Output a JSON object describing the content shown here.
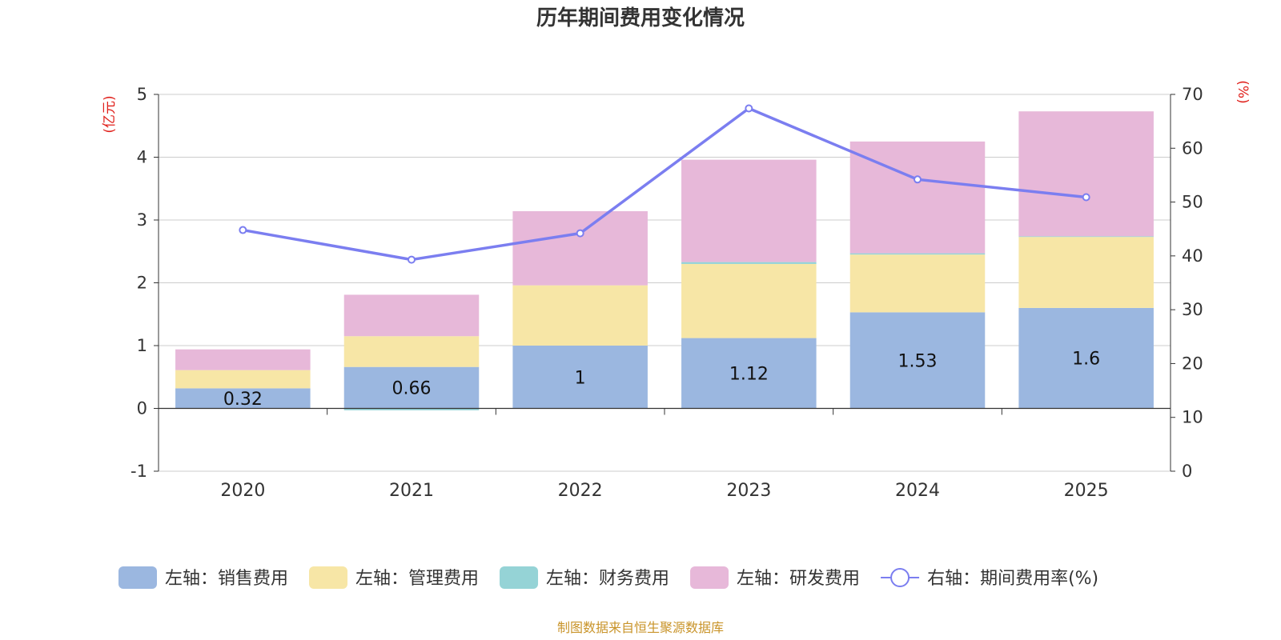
{
  "chart_data": {
    "type": "bar",
    "stacked": true,
    "title": "历年期间费用变化情况",
    "categories": [
      "2020",
      "2021",
      "2022",
      "2023",
      "2024",
      "2025"
    ],
    "left_axis": {
      "unit": "(亿元)",
      "ylim": [
        -1,
        5
      ],
      "ticks": [
        "-1",
        "0",
        "1",
        "2",
        "3",
        "4",
        "5"
      ]
    },
    "right_axis": {
      "unit": "(%)",
      "ylim": [
        0,
        70
      ],
      "ticks": [
        "0",
        "10",
        "20",
        "30",
        "40",
        "50",
        "60",
        "70"
      ]
    },
    "series": [
      {
        "name": "左轴：销售费用",
        "axis": "left",
        "color": "#9bb7e0",
        "values": [
          0.32,
          0.66,
          1.0,
          1.12,
          1.53,
          1.6
        ],
        "labels": [
          "0.32",
          "0.66",
          "1",
          "1.12",
          "1.53",
          "1.6"
        ]
      },
      {
        "name": "左轴：管理费用",
        "axis": "left",
        "color": "#f7e6a6",
        "values": [
          0.29,
          0.49,
          0.96,
          1.18,
          0.92,
          1.13
        ]
      },
      {
        "name": "左轴：财务费用",
        "axis": "left",
        "color": "#95d3d6",
        "values": [
          0.0,
          -0.03,
          0.0,
          0.03,
          0.02,
          0.01
        ]
      },
      {
        "name": "左轴：研发费用",
        "axis": "left",
        "color": "#e7b8d9",
        "values": [
          0.33,
          0.66,
          1.18,
          1.63,
          1.78,
          1.99
        ]
      }
    ],
    "line": {
      "name": "右轴：期间费用率(%)",
      "axis": "right",
      "color": "#7b7ef0",
      "values": [
        44.8,
        39.3,
        44.2,
        67.4,
        54.2,
        50.9
      ]
    },
    "source": "制图数据来自恒生聚源数据库"
  }
}
